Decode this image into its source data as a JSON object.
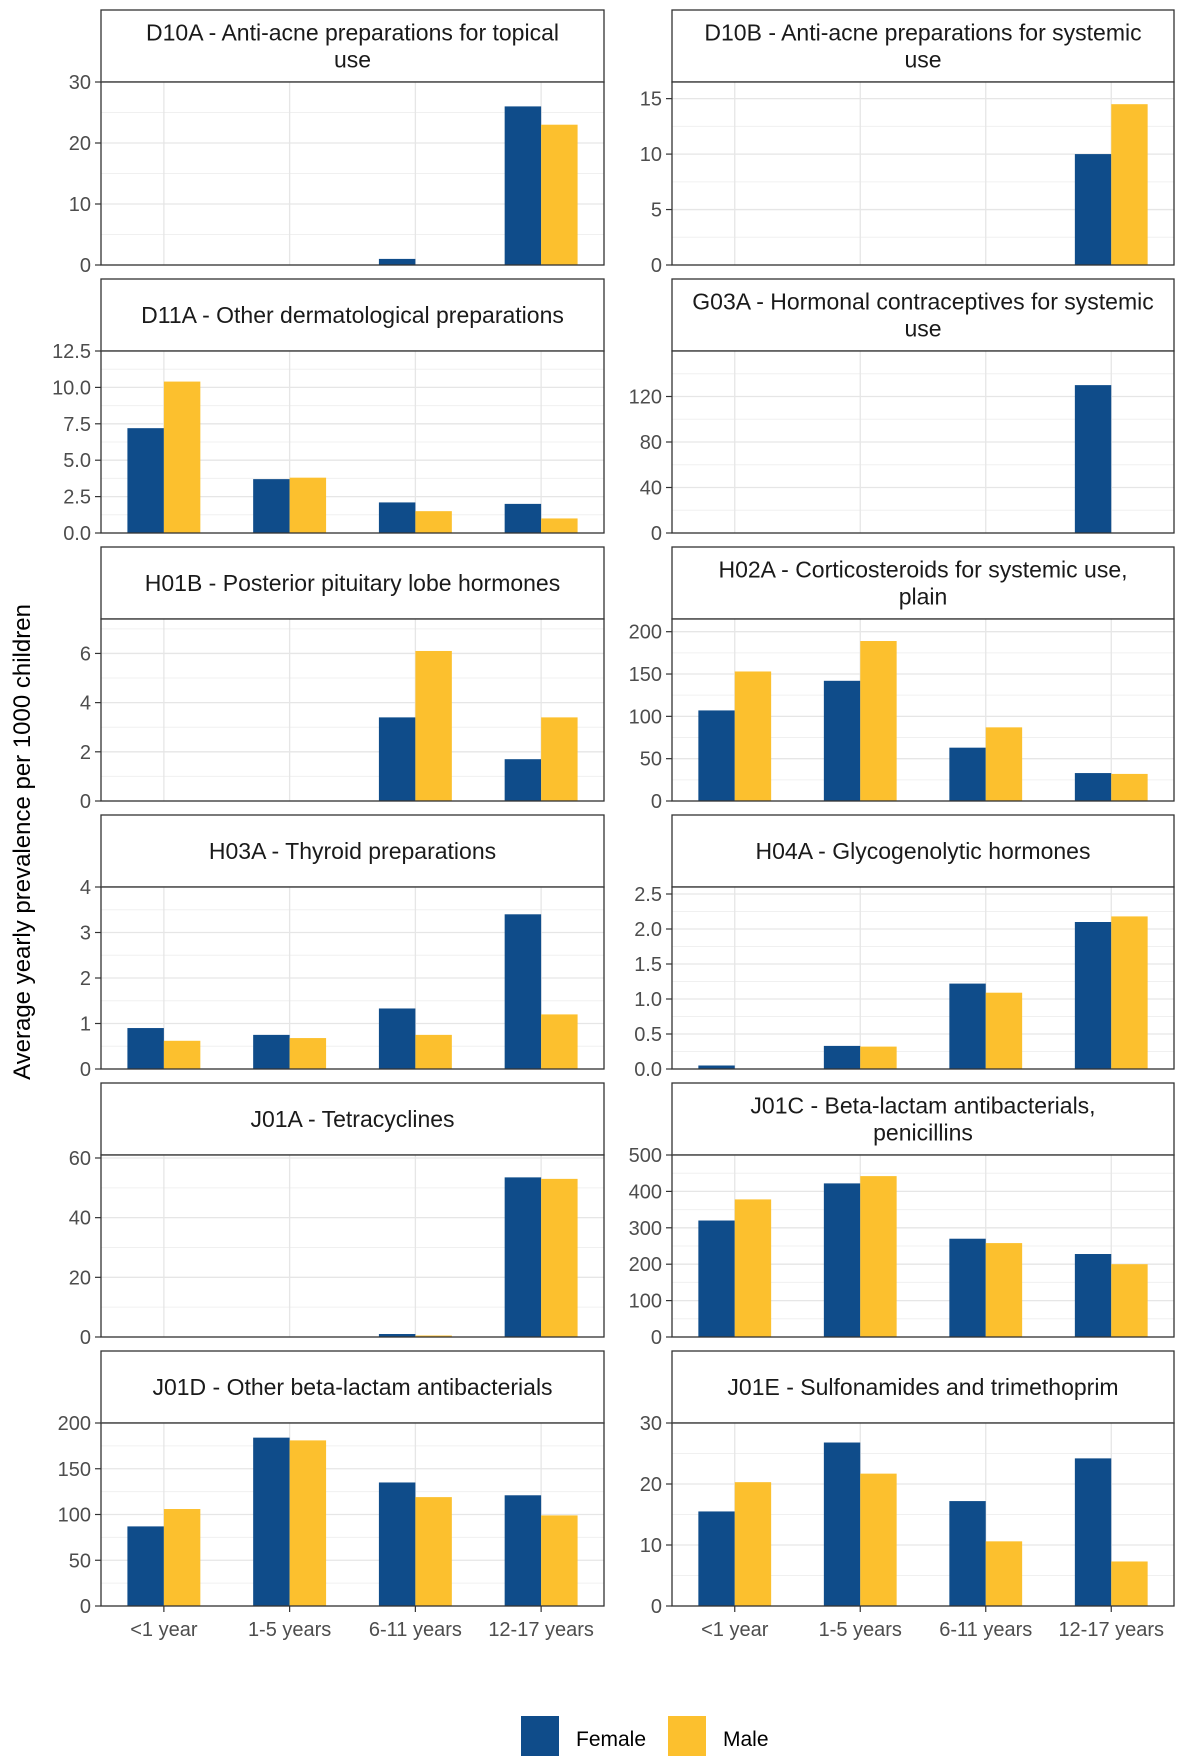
{
  "ylabel": "Average yearly prevalence per 1000 children",
  "legend": [
    {
      "label": "Female",
      "color": "#0f4c8a"
    },
    {
      "label": "Male",
      "color": "#fcc02e"
    }
  ],
  "chart_data": [
    {
      "type": "bar",
      "title": [
        "D10A - Anti-acne preparations for topical",
        "use"
      ],
      "categories": [
        "<1 year",
        "1-5 years",
        "6-11 years",
        "12-17 years"
      ],
      "series": [
        {
          "name": "Female",
          "values": [
            0,
            0,
            1.0,
            26.0
          ]
        },
        {
          "name": "Male",
          "values": [
            0,
            0,
            0,
            23.0
          ]
        }
      ],
      "ylim": [
        0,
        30
      ],
      "yticks": [
        "0",
        "10",
        "20",
        "30"
      ],
      "grid": true,
      "show_xticks": false
    },
    {
      "type": "bar",
      "title": [
        "D10B - Anti-acne preparations for systemic",
        "use"
      ],
      "categories": [
        "<1 year",
        "1-5 years",
        "6-11 years",
        "12-17 years"
      ],
      "series": [
        {
          "name": "Female",
          "values": [
            0,
            0,
            0,
            10.0
          ]
        },
        {
          "name": "Male",
          "values": [
            0,
            0,
            0,
            14.5
          ]
        }
      ],
      "ylim": [
        0,
        16.5
      ],
      "yticks": [
        "0",
        "5",
        "10",
        "15"
      ],
      "grid": true,
      "show_xticks": false
    },
    {
      "type": "bar",
      "title": [
        "D11A - Other dermatological preparations"
      ],
      "categories": [
        "<1 year",
        "1-5 years",
        "6-11 years",
        "12-17 years"
      ],
      "series": [
        {
          "name": "Female",
          "values": [
            7.2,
            3.7,
            2.1,
            2.0
          ]
        },
        {
          "name": "Male",
          "values": [
            10.4,
            3.8,
            1.5,
            1.0
          ]
        }
      ],
      "ylim": [
        0,
        12.5
      ],
      "yticks": [
        "0.0",
        "2.5",
        "5.0",
        "7.5",
        "10.0",
        "12.5"
      ],
      "grid": true,
      "show_xticks": false
    },
    {
      "type": "bar",
      "title": [
        "G03A - Hormonal contraceptives for systemic",
        "use"
      ],
      "categories": [
        "<1 year",
        "1-5 years",
        "6-11 years",
        "12-17 years"
      ],
      "series": [
        {
          "name": "Female",
          "values": [
            0,
            0,
            0,
            130.0
          ]
        },
        {
          "name": "Male",
          "values": [
            0,
            0,
            0,
            0
          ]
        }
      ],
      "ylim": [
        0,
        160
      ],
      "yticks": [
        "0",
        "40",
        "80",
        "120"
      ],
      "grid": true,
      "show_xticks": false
    },
    {
      "type": "bar",
      "title": [
        "H01B - Posterior pituitary lobe hormones"
      ],
      "categories": [
        "<1 year",
        "1-5 years",
        "6-11 years",
        "12-17 years"
      ],
      "series": [
        {
          "name": "Female",
          "values": [
            0,
            0,
            3.4,
            1.7
          ]
        },
        {
          "name": "Male",
          "values": [
            0,
            0,
            6.1,
            3.4
          ]
        }
      ],
      "ylim": [
        0,
        7.4
      ],
      "yticks": [
        "0",
        "2",
        "4",
        "6"
      ],
      "grid": true,
      "show_xticks": false
    },
    {
      "type": "bar",
      "title": [
        "H02A - Corticosteroids for systemic use,",
        "plain"
      ],
      "categories": [
        "<1 year",
        "1-5 years",
        "6-11 years",
        "12-17 years"
      ],
      "series": [
        {
          "name": "Female",
          "values": [
            107,
            142,
            63,
            33
          ]
        },
        {
          "name": "Male",
          "values": [
            153,
            189,
            87,
            32
          ]
        }
      ],
      "ylim": [
        0,
        215
      ],
      "yticks": [
        "0",
        "50",
        "100",
        "150",
        "200"
      ],
      "grid": true,
      "show_xticks": false
    },
    {
      "type": "bar",
      "title": [
        "H03A - Thyroid preparations"
      ],
      "categories": [
        "<1 year",
        "1-5 years",
        "6-11 years",
        "12-17 years"
      ],
      "series": [
        {
          "name": "Female",
          "values": [
            0.9,
            0.75,
            1.33,
            3.4
          ]
        },
        {
          "name": "Male",
          "values": [
            0.62,
            0.68,
            0.75,
            1.2
          ]
        }
      ],
      "ylim": [
        0,
        4.0
      ],
      "yticks": [
        "0",
        "1",
        "2",
        "3",
        "4"
      ],
      "grid": true,
      "show_xticks": false
    },
    {
      "type": "bar",
      "title": [
        "H04A - Glycogenolytic hormones"
      ],
      "categories": [
        "<1 year",
        "1-5 years",
        "6-11 years",
        "12-17 years"
      ],
      "series": [
        {
          "name": "Female",
          "values": [
            0.05,
            0.33,
            1.22,
            2.1
          ]
        },
        {
          "name": "Male",
          "values": [
            0,
            0.32,
            1.09,
            2.18
          ]
        }
      ],
      "ylim": [
        0,
        2.6
      ],
      "yticks": [
        "0.0",
        "0.5",
        "1.0",
        "1.5",
        "2.0",
        "2.5"
      ],
      "grid": true,
      "show_xticks": false
    },
    {
      "type": "bar",
      "title": [
        "J01A - Tetracyclines"
      ],
      "categories": [
        "<1 year",
        "1-5 years",
        "6-11 years",
        "12-17 years"
      ],
      "series": [
        {
          "name": "Female",
          "values": [
            0,
            0,
            1.0,
            53.5
          ]
        },
        {
          "name": "Male",
          "values": [
            0,
            0,
            0.5,
            53.0
          ]
        }
      ],
      "ylim": [
        0,
        61
      ],
      "yticks": [
        "0",
        "20",
        "40",
        "60"
      ],
      "grid": true,
      "show_xticks": false
    },
    {
      "type": "bar",
      "title": [
        "J01C - Beta-lactam antibacterials,",
        "penicillins"
      ],
      "categories": [
        "<1 year",
        "1-5 years",
        "6-11 years",
        "12-17 years"
      ],
      "series": [
        {
          "name": "Female",
          "values": [
            320,
            422,
            270,
            228
          ]
        },
        {
          "name": "Male",
          "values": [
            378,
            442,
            258,
            200
          ]
        }
      ],
      "ylim": [
        0,
        500
      ],
      "yticks": [
        "0",
        "100",
        "200",
        "300",
        "400",
        "500"
      ],
      "grid": true,
      "show_xticks": false
    },
    {
      "type": "bar",
      "title": [
        "J01D - Other beta-lactam antibacterials"
      ],
      "categories": [
        "<1 year",
        "1-5 years",
        "6-11 years",
        "12-17 years"
      ],
      "series": [
        {
          "name": "Female",
          "values": [
            87,
            184,
            135,
            121
          ]
        },
        {
          "name": "Male",
          "values": [
            106,
            181,
            119,
            99
          ]
        }
      ],
      "ylim": [
        0,
        200
      ],
      "yticks": [
        "0",
        "50",
        "100",
        "150",
        "200"
      ],
      "grid": true,
      "show_xticks": true
    },
    {
      "type": "bar",
      "title": [
        "J01E - Sulfonamides and trimethoprim"
      ],
      "categories": [
        "<1 year",
        "1-5 years",
        "6-11 years",
        "12-17 years"
      ],
      "series": [
        {
          "name": "Female",
          "values": [
            15.5,
            26.8,
            17.2,
            24.2
          ]
        },
        {
          "name": "Male",
          "values": [
            20.3,
            21.7,
            10.6,
            7.3
          ]
        }
      ],
      "ylim": [
        0,
        30
      ],
      "yticks": [
        "0",
        "10",
        "20",
        "30"
      ],
      "grid": true,
      "show_xticks": true
    }
  ]
}
